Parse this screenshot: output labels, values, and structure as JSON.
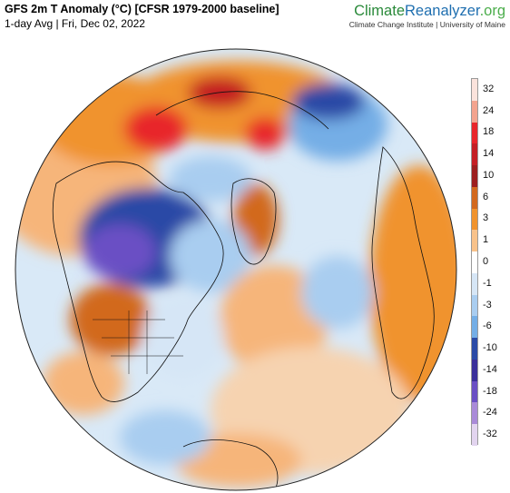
{
  "header": {
    "title": "GFS 2m T Anomaly (°C) [CFSR 1979-2000 baseline]",
    "subtitle": "1-day Avg | Fri, Dec 02, 2022"
  },
  "brand": {
    "name_part1": "Climate",
    "name_part2": "Reanalyzer",
    "name_part3": ".org",
    "affiliation": "Climate Change Institute | University of Maine"
  },
  "legend": {
    "ticks": [
      "32",
      "24",
      "18",
      "14",
      "10",
      "6",
      "3",
      "1",
      "0",
      "-1",
      "-3",
      "-6",
      "-10",
      "-14",
      "-18",
      "-24",
      "-32"
    ],
    "colors": [
      "#fbe3dc",
      "#f3a38e",
      "#e8252a",
      "#c41e24",
      "#9c1e1e",
      "#d2691e",
      "#f0932d",
      "#f8c28a",
      "#ffffff",
      "#d6e6f6",
      "#a9cdf0",
      "#74aee6",
      "#2a4aa6",
      "#3a2f9a",
      "#6a4fc4",
      "#a98ad8",
      "#e2d4ef"
    ]
  },
  "map": {
    "projection": "orthographic",
    "colors": {
      "warm_light": "#f6b57a",
      "warm_mid": "#f0932d",
      "warm_dark": "#d2691e",
      "hot": "#e8252a",
      "hot_dark": "#9c1e1e",
      "cool_light": "#d6e6f6",
      "cool_mid": "#a9cdf0",
      "cool_dark": "#2a4aa6",
      "cold": "#6a4fc4",
      "neutral": "#ffffff"
    }
  }
}
